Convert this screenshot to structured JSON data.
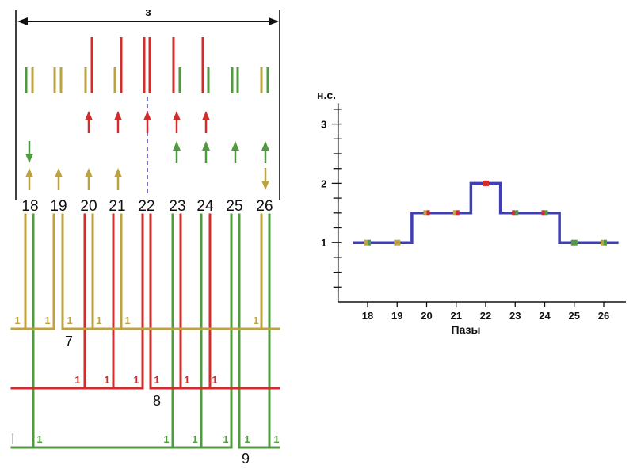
{
  "diagram": {
    "span_label": "з",
    "slot_labels": [
      "18",
      "19",
      "20",
      "21",
      "22",
      "23",
      "24",
      "25",
      "26"
    ],
    "turn_labels": {
      "gold": [
        "1",
        "1",
        "1",
        "1",
        "1",
        "1"
      ],
      "red": [
        "1",
        "1",
        "1",
        "1",
        "1",
        "1"
      ],
      "green": [
        "1",
        "1",
        "1",
        "1",
        "1",
        "1"
      ]
    },
    "lead_labels": [
      "7",
      "8",
      "9"
    ],
    "colors": {
      "gold": "#bda33f",
      "red": "#d42b2b",
      "green": "#4f9b3e",
      "dash": "#4a4ab6",
      "mark": "#c4c4c4",
      "line": "#111111"
    }
  },
  "chart_data": {
    "type": "line",
    "step": true,
    "x": [
      18,
      19,
      20,
      21,
      22,
      23,
      24,
      25,
      26
    ],
    "x_tick_labels": [
      "18",
      "19",
      "20",
      "21",
      "22",
      "23",
      "24",
      "25",
      "26"
    ],
    "values": [
      1,
      1,
      1.5,
      1.5,
      2,
      1.5,
      1.5,
      1,
      1
    ],
    "y_ticks": [
      1,
      2,
      3
    ],
    "y_tick_labels": [
      "1",
      "2",
      "3"
    ],
    "y_minor_step": 0.25,
    "ylabel": "н.с.",
    "xlabel": "Пазы",
    "xlim": [
      17,
      26.75
    ],
    "ylim": [
      0,
      3.35
    ],
    "grid": false,
    "line_color": "#3f3fb3",
    "marker_colors": [
      [
        "#bda33f",
        "#4f9b3e"
      ],
      [
        "#bda33f",
        "#bda33f"
      ],
      [
        "#bda33f",
        "#d42b2b"
      ],
      [
        "#bda33f",
        "#d42b2b"
      ],
      [
        "#d42b2b",
        "#d42b2b"
      ],
      [
        "#d42b2b",
        "#4f9b3e"
      ],
      [
        "#d42b2b",
        "#4f9b3e"
      ],
      [
        "#4f9b3e",
        "#4f9b3e"
      ],
      [
        "#bda33f",
        "#4f9b3e"
      ]
    ]
  }
}
